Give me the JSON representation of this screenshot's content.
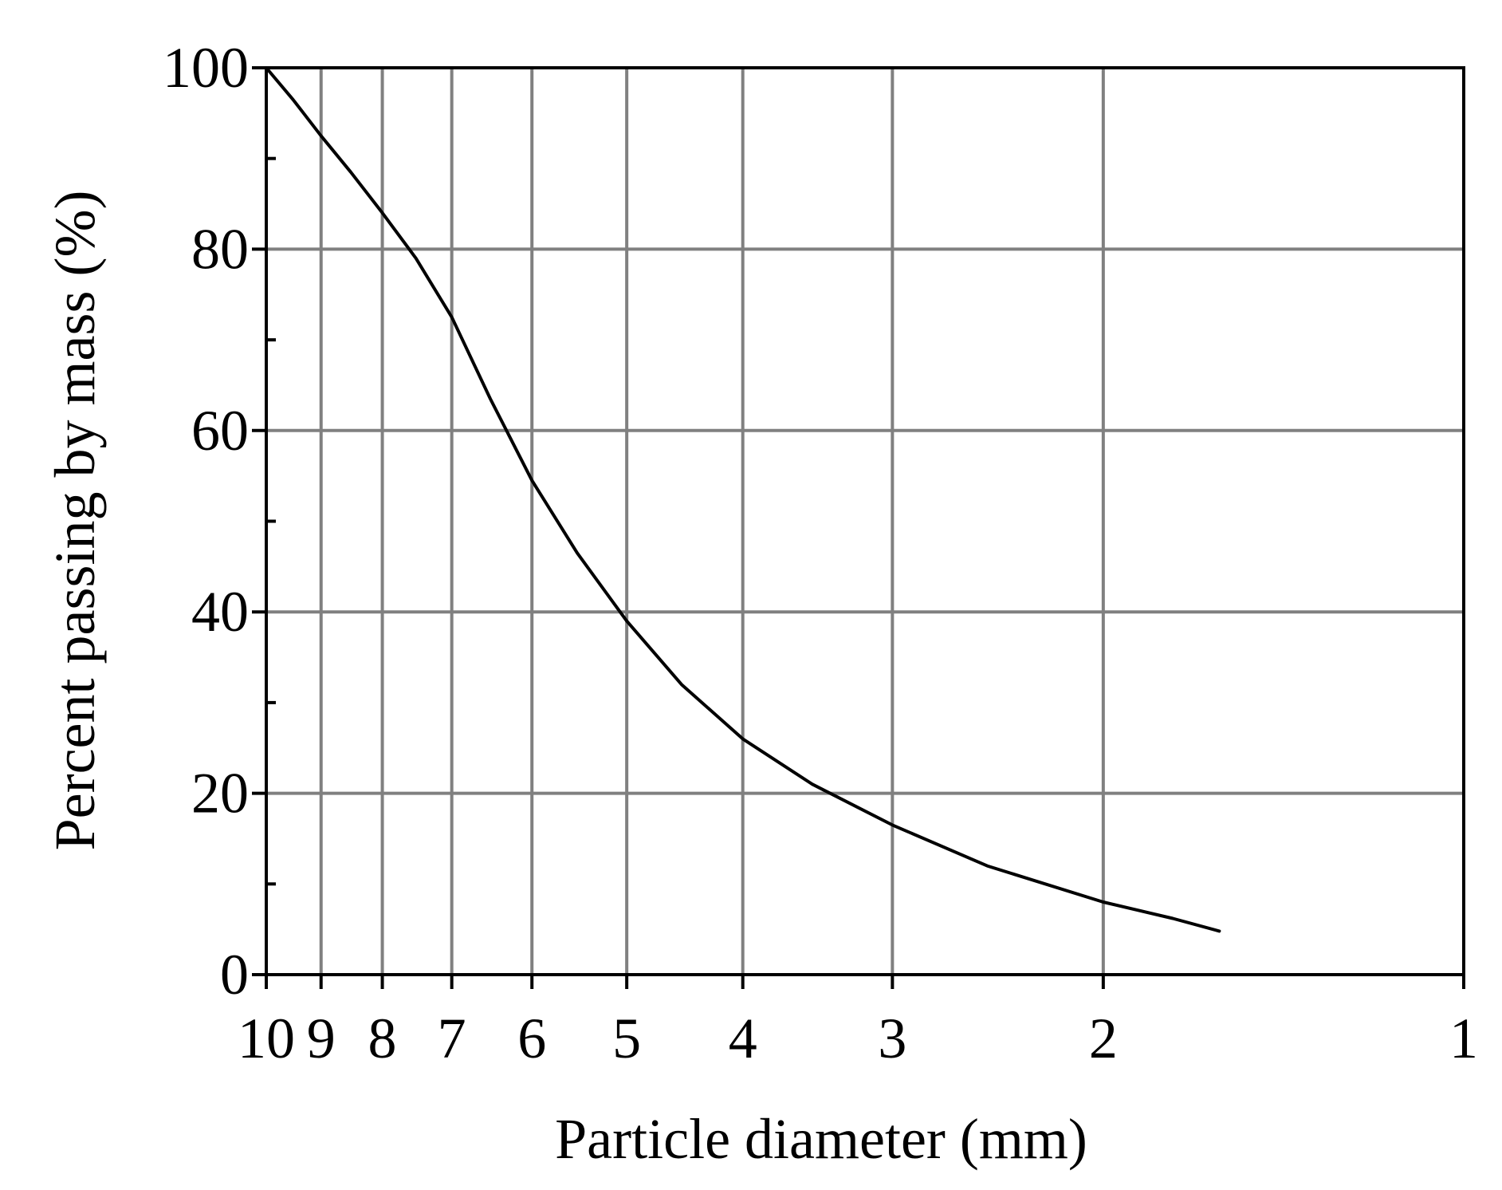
{
  "chart_data": {
    "type": "line",
    "title": "",
    "xlabel": "Particle diameter (mm)",
    "ylabel": "Percent passing by mass (%)",
    "x_scale": "log-reversed",
    "xlim": [
      10,
      1
    ],
    "ylim": [
      0,
      100
    ],
    "grid": true,
    "x_ticks": [
      10,
      9,
      8,
      7,
      6,
      5,
      4,
      3,
      2,
      1
    ],
    "x_tick_labels": [
      "10",
      "9",
      "8",
      "7",
      "6",
      "5",
      "4",
      "3",
      "2",
      "1"
    ],
    "y_ticks": [
      0,
      20,
      40,
      60,
      80,
      100
    ],
    "y_tick_labels": [
      "0",
      "20",
      "40",
      "60",
      "80",
      "100"
    ],
    "y_minor_ticks": [
      10,
      30,
      50,
      70,
      90
    ],
    "series": [
      {
        "color": "#000000",
        "x": [
          10,
          9.5,
          9,
          8.5,
          8,
          7.5,
          7,
          6.5,
          6,
          5.5,
          5,
          4.5,
          4,
          3.5,
          3,
          2.5,
          2,
          1.75,
          1.6
        ],
        "y": [
          100,
          96.5,
          92.5,
          88.5,
          84,
          79,
          72.5,
          63.5,
          54.5,
          46.5,
          39,
          32,
          26,
          21,
          16.5,
          12,
          8,
          6.2,
          4.8
        ]
      }
    ],
    "colors": {
      "grid": "#808080",
      "axes": "#000000",
      "line": "#000000",
      "background": "#ffffff"
    }
  }
}
